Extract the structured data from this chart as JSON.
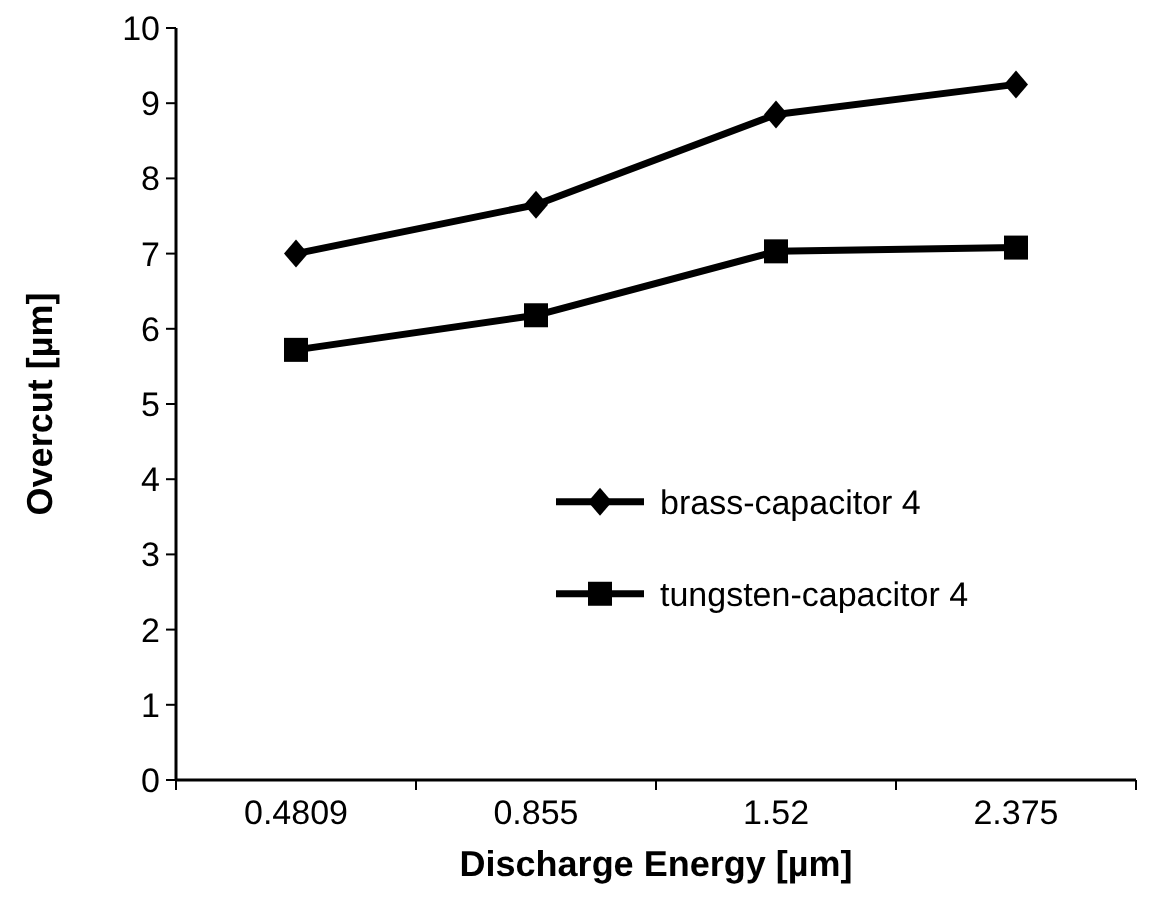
{
  "chart_data": {
    "type": "line",
    "xlabel": "Discharge Energy [µm]",
    "ylabel": "Overcut [µm]",
    "categories": [
      "0.4809",
      "0.855",
      "1.52",
      "2.375"
    ],
    "series": [
      {
        "name": "brass-capacitor 4",
        "color": "#000000",
        "marker": "diamond",
        "values": [
          7.0,
          7.65,
          8.85,
          9.25
        ]
      },
      {
        "name": "tungsten-capacitor 4",
        "color": "#000000",
        "marker": "square",
        "values": [
          5.72,
          6.18,
          7.03,
          7.08
        ]
      }
    ],
    "ylim": [
      0,
      10
    ],
    "yticks": [
      0,
      1,
      2,
      3,
      4,
      5,
      6,
      7,
      8,
      9,
      10
    ],
    "grid": false,
    "legend": "right",
    "line_style": "solid"
  }
}
